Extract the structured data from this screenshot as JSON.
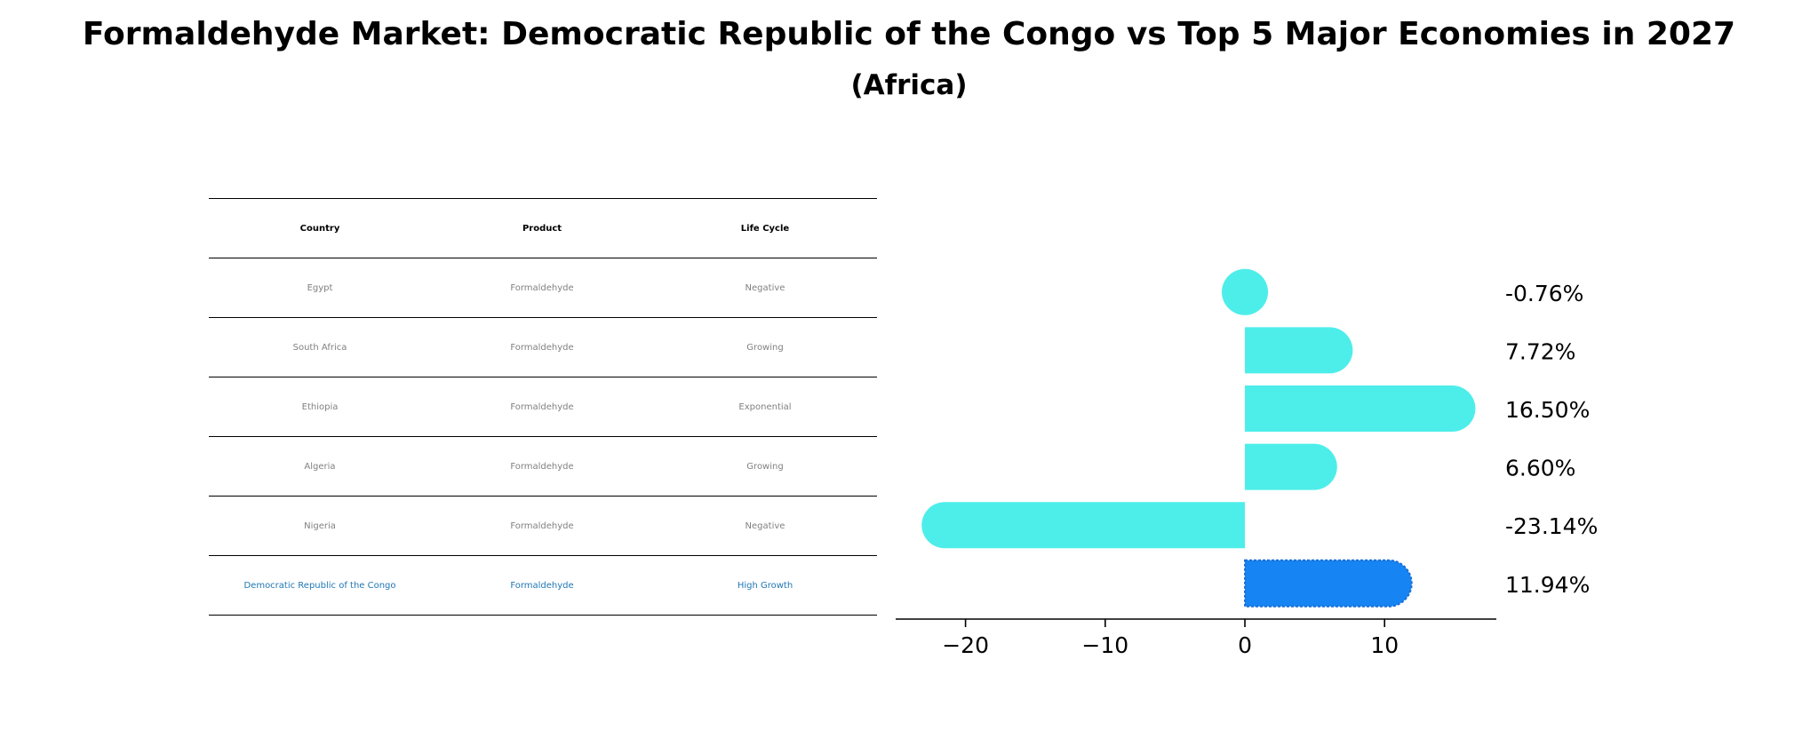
{
  "chart_data": {
    "type": "bar",
    "orientation": "horizontal",
    "title": "Formaldehyde Market: Democratic Republic of the Congo vs Top 5 Major Economies in 2027",
    "subtitle": "(Africa)",
    "categories": [
      "Egypt",
      "South Africa",
      "Ethiopia",
      "Algeria",
      "Nigeria",
      "Democratic Republic of the Congo"
    ],
    "values": [
      -0.76,
      7.72,
      16.5,
      6.6,
      -23.14,
      11.94
    ],
    "value_labels": [
      "-0.76%",
      "7.72%",
      "16.50%",
      "6.60%",
      "-23.14%",
      "11.94%"
    ],
    "highlight_index": 5,
    "xlim": [
      -25,
      18
    ],
    "xticks": [
      -20,
      -10,
      0,
      10
    ],
    "xtick_labels": [
      "−20",
      "−10",
      "0",
      "10"
    ],
    "colors": {
      "bar": "#4deeea",
      "highlight": "#1684f2"
    },
    "grid": false
  },
  "table": {
    "headers": [
      "Country",
      "Product",
      "Life Cycle"
    ],
    "rows": [
      [
        "Egypt",
        "Formaldehyde",
        "Negative"
      ],
      [
        "South Africa",
        "Formaldehyde",
        "Growing"
      ],
      [
        "Ethiopia",
        "Formaldehyde",
        "Exponential"
      ],
      [
        "Algeria",
        "Formaldehyde",
        "Growing"
      ],
      [
        "Nigeria",
        "Formaldehyde",
        "Negative"
      ],
      [
        "Democratic Republic of the Congo",
        "Formaldehyde",
        "High Growth"
      ]
    ],
    "highlight_row": 5,
    "colors": {
      "text": "#808080",
      "highlight_text": "#1f77b4"
    }
  }
}
